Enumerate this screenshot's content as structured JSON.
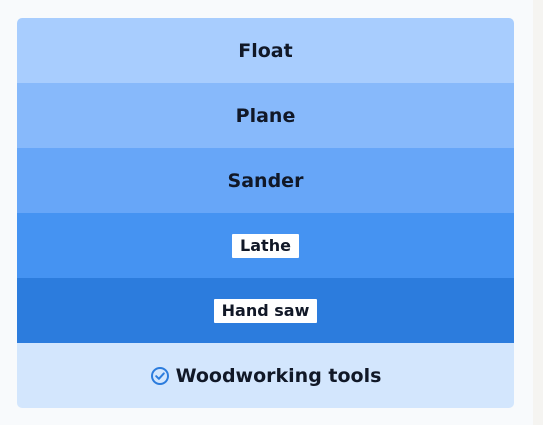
{
  "colors": {
    "row_1": "#a8cdfe",
    "row_2": "#87b9fb",
    "row_3": "#67a6f8",
    "row_4": "#4593f2",
    "row_5": "#2c7cdd",
    "footer": "#d3e6fd",
    "check": "#2c7cdd"
  },
  "rows": [
    {
      "label": "Float"
    },
    {
      "label": "Plane"
    },
    {
      "label": "Sander"
    },
    {
      "label": "Lathe"
    },
    {
      "label": "Hand saw"
    }
  ],
  "footer": {
    "icon": "check-circle-icon",
    "label": "Woodworking tools"
  }
}
